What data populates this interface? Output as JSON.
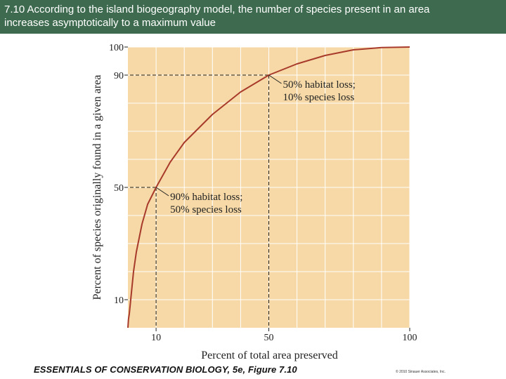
{
  "header": {
    "line1": "7.10  According to the island biogeography model, the number of species present in an area",
    "line2": "increases asymptotically to a maximum value"
  },
  "footer": {
    "source": "ESSENTIALS OF CONSERVATION BIOLOGY, 5e, Figure 7.10",
    "copyright": "© 2010 Sinauer Associates, Inc."
  },
  "colors": {
    "header_bg": "#3e6b4f",
    "plot_bg": "#f6d9a6",
    "curve": "#a83a2c",
    "grid": "#ffffff"
  },
  "chart_data": {
    "type": "line",
    "xlabel": "Percent of total area preserved",
    "ylabel": "Percent of species originally found in a given area",
    "x_ticks": [
      {
        "value": 10,
        "label": "10"
      },
      {
        "value": 50,
        "label": "50"
      },
      {
        "value": 100,
        "label": "100"
      }
    ],
    "y_ticks": [
      {
        "value": 10,
        "label": "10"
      },
      {
        "value": 50,
        "label": "50"
      },
      {
        "value": 90,
        "label": "90"
      },
      {
        "value": 100,
        "label": "100"
      }
    ],
    "grid": true,
    "series": [
      {
        "x": [
          0.2,
          0.5,
          1,
          2,
          3,
          5,
          7,
          10,
          15,
          20,
          30,
          40,
          50,
          60,
          70,
          80,
          90,
          100
        ],
        "y": [
          3,
          5,
          10,
          20,
          27,
          37,
          44,
          50,
          59,
          66,
          76,
          84,
          90,
          94,
          97,
          99,
          99.8,
          100
        ]
      }
    ],
    "annotations": [
      {
        "x": 50,
        "y": 90,
        "lines": [
          "50% habitat loss;",
          "10% species loss"
        ]
      },
      {
        "x": 10,
        "y": 50,
        "lines": [
          "90% habitat loss;",
          "50% species loss"
        ]
      }
    ]
  }
}
